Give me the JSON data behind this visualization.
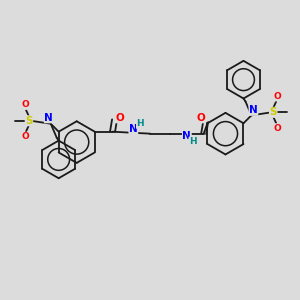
{
  "background_color": "#dcdcdc",
  "bond_color": "#1a1a1a",
  "atom_colors": {
    "N": "#0000ff",
    "O": "#ff0000",
    "S": "#cccc00",
    "H": "#008b8b",
    "C": "#1a1a1a"
  },
  "lw": 1.3,
  "fs": 7.5,
  "fig_size": [
    3.0,
    3.0
  ],
  "dpi": 100
}
